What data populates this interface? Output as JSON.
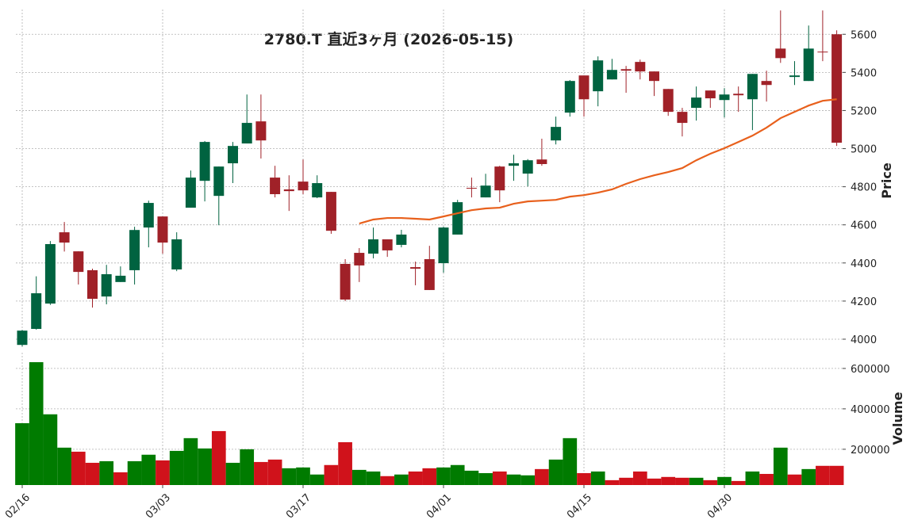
{
  "chart_data": [
    {
      "type": "candlestick",
      "title": "2780.T 直近3ヶ月 (2026-05-15)",
      "ylabel": "Price",
      "up_color": "#006340",
      "down_color": "#a02128",
      "open": [
        3970,
        4054,
        4187,
        4561,
        4461,
        4362,
        4224,
        4300,
        4362,
        4586,
        4644,
        4366,
        4690,
        4831,
        4752,
        4923,
        5027,
        5143,
        4848,
        4786,
        4827,
        4744,
        4773,
        4395,
        4453,
        4449,
        4524,
        4495,
        4378,
        4420,
        4399,
        4549,
        4794,
        4744,
        4906,
        4910,
        4869,
        4943,
        5043,
        5189,
        5384,
        5301,
        5363,
        5417,
        5455,
        5405,
        5313,
        5193,
        5214,
        5305,
        5255,
        5288,
        5259,
        5355,
        5525,
        5376,
        5355,
        5509,
        5600
      ],
      "high": [
        4048,
        4330,
        4515,
        4615,
        4461,
        4370,
        4390,
        4382,
        4590,
        4727,
        4644,
        4561,
        4885,
        5040,
        4906,
        5035,
        5284,
        5284,
        4910,
        4860,
        4943,
        4860,
        4773,
        4420,
        4478,
        4586,
        4524,
        4574,
        4407,
        4490,
        4590,
        4731,
        4848,
        4868,
        4910,
        4968,
        4945,
        5052,
        5168,
        5360,
        5384,
        5484,
        5471,
        5434,
        5467,
        5405,
        5313,
        5214,
        5326,
        5305,
        5317,
        5326,
        5392,
        5409,
        5725,
        5459,
        5646,
        5725,
        5621
      ],
      "low": [
        3962,
        4050,
        4180,
        4460,
        4287,
        4166,
        4183,
        4300,
        4287,
        4482,
        4449,
        4357,
        4690,
        4723,
        4598,
        4819,
        5027,
        4948,
        4744,
        4673,
        4761,
        4740,
        4553,
        4200,
        4300,
        4424,
        4432,
        4482,
        4283,
        4258,
        4349,
        4549,
        4744,
        4744,
        4719,
        4831,
        4802,
        4910,
        5022,
        5168,
        5168,
        5222,
        5363,
        5293,
        5363,
        5276,
        5172,
        5064,
        5147,
        5214,
        5164,
        5193,
        5097,
        5247,
        5450,
        5334,
        5355,
        5459,
        5014
      ],
      "close": [
        4045,
        4241,
        4499,
        4507,
        4353,
        4212,
        4341,
        4333,
        4573,
        4715,
        4507,
        4524,
        4848,
        5035,
        4906,
        5014,
        5135,
        5043,
        4761,
        4777,
        4781,
        4819,
        4569,
        4208,
        4387,
        4524,
        4466,
        4549,
        4370,
        4258,
        4586,
        4719,
        4790,
        4806,
        4781,
        4923,
        4939,
        4919,
        5114,
        5355,
        5259,
        5463,
        5413,
        5409,
        5405,
        5355,
        5193,
        5135,
        5268,
        5264,
        5284,
        5280,
        5392,
        5334,
        5475,
        5384,
        5525,
        5505,
        5031
      ],
      "ma": {
        "color": "#e8601c",
        "values": [
          null,
          null,
          null,
          null,
          null,
          null,
          null,
          null,
          null,
          null,
          null,
          null,
          null,
          null,
          null,
          null,
          null,
          null,
          null,
          null,
          null,
          null,
          null,
          null,
          4607,
          4628,
          4636,
          4636,
          4632,
          4628,
          4644,
          4661,
          4677,
          4686,
          4690,
          4711,
          4723,
          4727,
          4731,
          4748,
          4756,
          4769,
          4786,
          4815,
          4840,
          4860,
          4877,
          4898,
          4939,
          4973,
          5002,
          5035,
          5068,
          5110,
          5160,
          5193,
          5226,
          5251,
          5259
        ]
      },
      "ylim": [
        3950,
        5730
      ],
      "yticks": [
        4000,
        4200,
        4400,
        4600,
        4800,
        5000,
        5200,
        5400,
        5600
      ],
      "grid": true
    },
    {
      "type": "bar",
      "ylabel": "Volume",
      "categories": [
        "02/16",
        null,
        null,
        null,
        null,
        null,
        null,
        null,
        null,
        null,
        "03/03",
        null,
        null,
        null,
        null,
        null,
        null,
        null,
        null,
        null,
        "03/17",
        null,
        null,
        null,
        null,
        null,
        null,
        null,
        null,
        null,
        "04/01",
        null,
        null,
        null,
        null,
        null,
        null,
        null,
        null,
        null,
        "04/15",
        null,
        null,
        null,
        null,
        null,
        null,
        null,
        null,
        null,
        "04/30",
        null,
        null,
        null,
        null,
        null,
        null,
        null,
        null
      ],
      "values": [
        329000,
        631000,
        373000,
        208000,
        188000,
        133000,
        141000,
        86000,
        141000,
        173000,
        145000,
        192000,
        255000,
        204000,
        290000,
        133000,
        200000,
        137000,
        149000,
        106000,
        110000,
        75000,
        122000,
        235000,
        98000,
        90000,
        67000,
        75000,
        90000,
        106000,
        110000,
        122000,
        94000,
        82000,
        90000,
        75000,
        71000,
        102000,
        149000,
        255000,
        82000,
        90000,
        47000,
        59000,
        90000,
        55000,
        63000,
        59000,
        59000,
        47000,
        63000,
        43000,
        90000,
        78000,
        208000,
        75000,
        102000,
        118000,
        118000
      ],
      "colors": [
        "#007b00",
        "#007b00",
        "#007b00",
        "#007b00",
        "#d0121b",
        "#d0121b",
        "#007b00",
        "#d0121b",
        "#007b00",
        "#007b00",
        "#d0121b",
        "#007b00",
        "#007b00",
        "#007b00",
        "#d0121b",
        "#007b00",
        "#007b00",
        "#d0121b",
        "#d0121b",
        "#007b00",
        "#007b00",
        "#007b00",
        "#d0121b",
        "#d0121b",
        "#007b00",
        "#007b00",
        "#d0121b",
        "#007b00",
        "#d0121b",
        "#d0121b",
        "#007b00",
        "#007b00",
        "#007b00",
        "#007b00",
        "#d0121b",
        "#007b00",
        "#007b00",
        "#d0121b",
        "#007b00",
        "#007b00",
        "#d0121b",
        "#007b00",
        "#d0121b",
        "#d0121b",
        "#d0121b",
        "#d0121b",
        "#d0121b",
        "#d0121b",
        "#007b00",
        "#d0121b",
        "#007b00",
        "#d0121b",
        "#007b00",
        "#d0121b",
        "#007b00",
        "#d0121b",
        "#007b00",
        "#d0121b",
        "#d0121b"
      ],
      "ylim": [
        23000,
        678000
      ],
      "yticks": [
        200000,
        400000,
        600000
      ],
      "grid": true
    }
  ]
}
